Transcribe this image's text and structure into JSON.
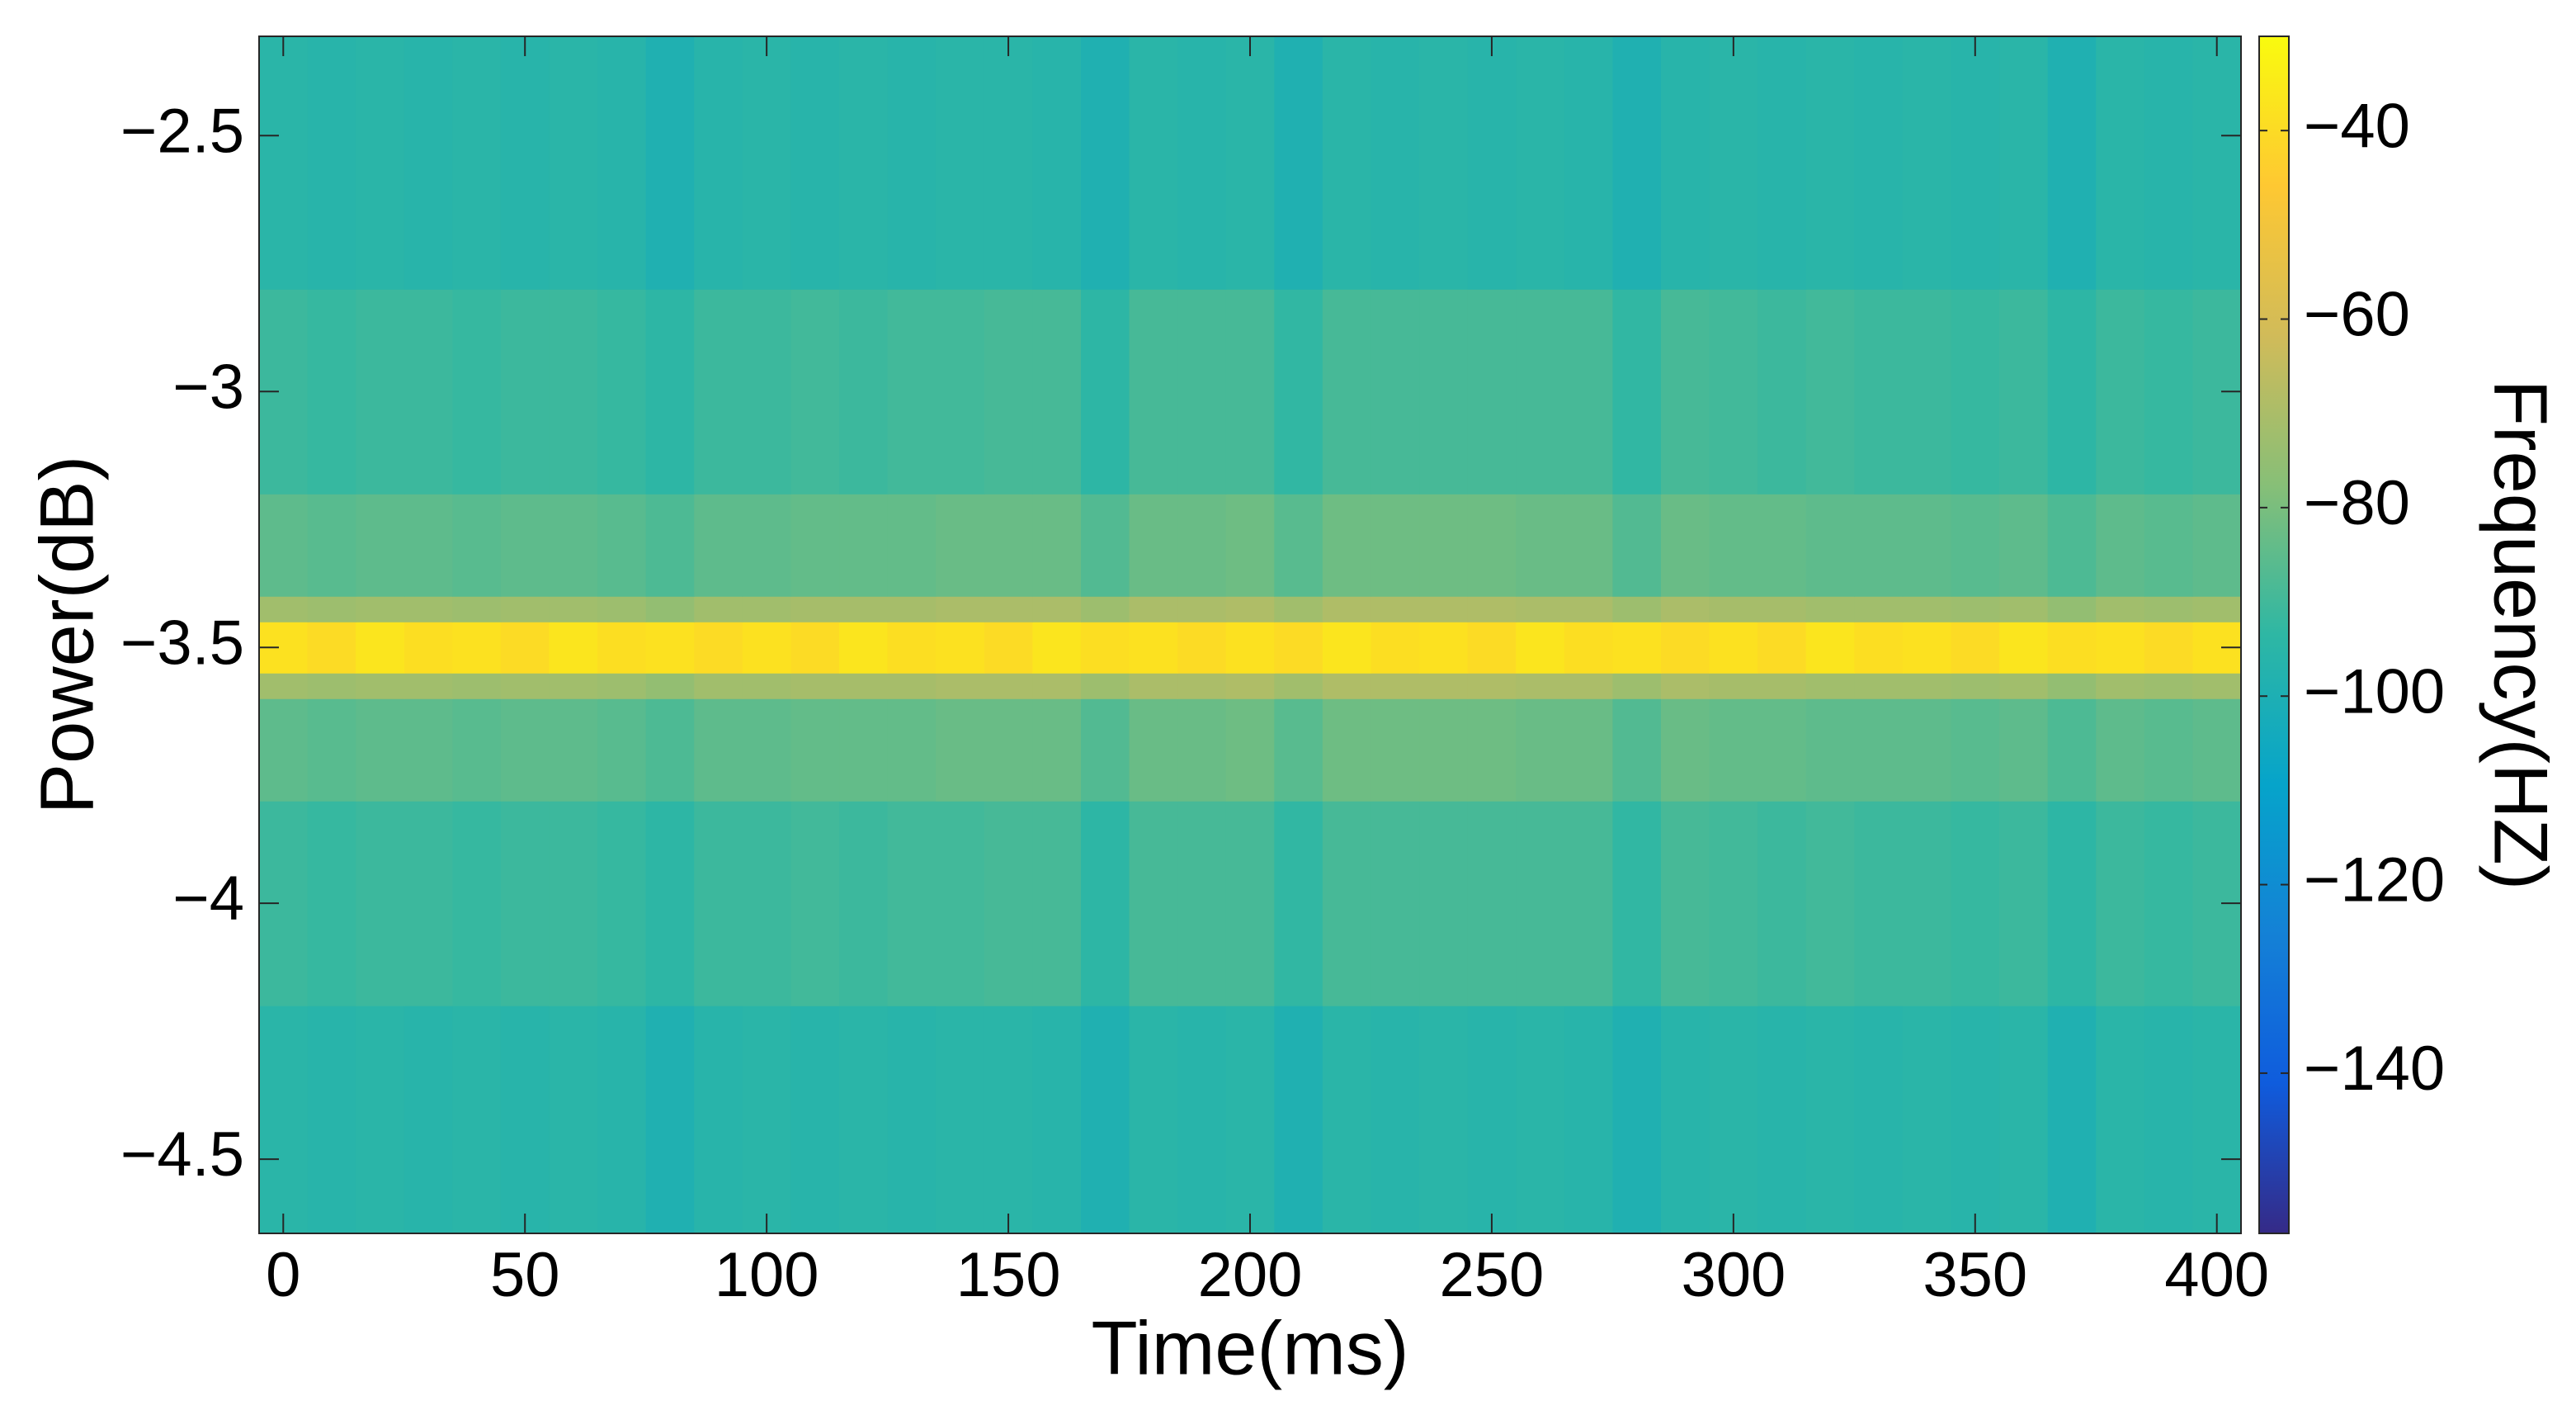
{
  "chart_data": {
    "type": "heatmap",
    "xlabel": "Time(ms)",
    "ylabel": "Power(dB)",
    "colorbar_label": "Frequency(HZ)",
    "xlim": [
      -5,
      405
    ],
    "xticks": [
      0,
      50,
      100,
      150,
      200,
      250,
      300,
      350,
      400
    ],
    "ylim": [
      -4.645,
      -2.306
    ],
    "yticks": [
      {
        "value": -4.5,
        "label": "−4.5"
      },
      {
        "value": -4,
        "label": "−4"
      },
      {
        "value": -3.5,
        "label": "−3.5"
      },
      {
        "value": -3,
        "label": "−3"
      },
      {
        "value": -2.5,
        "label": "−2.5"
      }
    ],
    "clim": [
      -157,
      -30
    ],
    "cticks": [
      {
        "value": -140,
        "label": "−140"
      },
      {
        "value": -120,
        "label": "−120"
      },
      {
        "value": -100,
        "label": "−100"
      },
      {
        "value": -80,
        "label": "−80"
      },
      {
        "value": -60,
        "label": "−60"
      },
      {
        "value": -40,
        "label": "−40"
      }
    ],
    "colormap": "parula",
    "x_bins": [
      -5,
      5,
      15,
      25,
      35,
      45,
      55,
      65,
      75,
      85,
      95,
      105,
      115,
      125,
      135,
      145,
      155,
      165,
      175,
      185,
      195,
      205,
      215,
      225,
      235,
      245,
      255,
      265,
      275,
      285,
      295,
      305,
      315,
      325,
      335,
      345,
      355,
      365,
      375,
      385,
      395,
      405
    ],
    "y_bins": [
      -4.645,
      -4.2,
      -3.8,
      -3.6,
      -3.55,
      -3.45,
      -3.4,
      -3.2,
      -2.8,
      -2.306
    ],
    "z": [
      [
        -95,
        -96,
        -95,
        -96,
        -95,
        -96,
        -95,
        -96,
        -99,
        -96,
        -95,
        -96,
        -95,
        -96,
        -95,
        -95,
        -96,
        -99,
        -95,
        -96,
        -95,
        -99,
        -95,
        -96,
        -95,
        -96,
        -95,
        -96,
        -99,
        -96,
        -95,
        -96,
        -95,
        -96,
        -95,
        -96,
        -95,
        -99,
        -95,
        -96,
        -95
      ],
      [
        -91,
        -92,
        -91,
        -91,
        -92,
        -91,
        -91,
        -92,
        -94,
        -91,
        -91,
        -90,
        -91,
        -90,
        -90,
        -89,
        -89,
        -94,
        -89,
        -89,
        -89,
        -93,
        -89,
        -89,
        -89,
        -89,
        -89,
        -89,
        -93,
        -89,
        -90,
        -91,
        -90,
        -91,
        -91,
        -92,
        -91,
        -94,
        -91,
        -92,
        -91
      ],
      [
        -85,
        -86,
        -85,
        -85,
        -86,
        -85,
        -85,
        -86,
        -88,
        -85,
        -85,
        -84,
        -84,
        -84,
        -83,
        -83,
        -83,
        -87,
        -83,
        -83,
        -82,
        -86,
        -82,
        -82,
        -82,
        -82,
        -83,
        -83,
        -87,
        -83,
        -84,
        -84,
        -85,
        -85,
        -85,
        -86,
        -85,
        -88,
        -85,
        -86,
        -85
      ],
      [
        -72,
        -73,
        -72,
        -72,
        -73,
        -72,
        -72,
        -73,
        -75,
        -72,
        -72,
        -71,
        -71,
        -71,
        -70,
        -70,
        -70,
        -73,
        -70,
        -70,
        -69,
        -72,
        -69,
        -69,
        -69,
        -69,
        -70,
        -70,
        -73,
        -70,
        -71,
        -71,
        -72,
        -72,
        -72,
        -73,
        -72,
        -75,
        -72,
        -73,
        -72
      ],
      [
        -38,
        -40,
        -37,
        -39,
        -38,
        -40,
        -37,
        -39,
        -38,
        -40,
        -38,
        -40,
        -37,
        -39,
        -38,
        -40,
        -37,
        -39,
        -38,
        -40,
        -38,
        -40,
        -37,
        -39,
        -38,
        -40,
        -37,
        -39,
        -38,
        -40,
        -38,
        -40,
        -37,
        -39,
        -38,
        -40,
        -37,
        -39,
        -38,
        -40,
        -38
      ],
      [
        -72,
        -73,
        -72,
        -72,
        -73,
        -72,
        -72,
        -73,
        -75,
        -72,
        -72,
        -71,
        -71,
        -71,
        -70,
        -70,
        -70,
        -73,
        -70,
        -70,
        -69,
        -72,
        -69,
        -69,
        -69,
        -69,
        -70,
        -70,
        -73,
        -70,
        -71,
        -71,
        -72,
        -72,
        -72,
        -73,
        -72,
        -75,
        -72,
        -73,
        -72
      ],
      [
        -85,
        -86,
        -85,
        -85,
        -86,
        -85,
        -85,
        -86,
        -88,
        -85,
        -85,
        -84,
        -84,
        -84,
        -83,
        -83,
        -83,
        -87,
        -83,
        -83,
        -82,
        -86,
        -82,
        -82,
        -82,
        -82,
        -83,
        -83,
        -87,
        -83,
        -84,
        -84,
        -85,
        -85,
        -85,
        -86,
        -85,
        -88,
        -85,
        -86,
        -85
      ],
      [
        -91,
        -92,
        -91,
        -91,
        -92,
        -91,
        -91,
        -92,
        -94,
        -91,
        -91,
        -90,
        -91,
        -90,
        -90,
        -89,
        -89,
        -94,
        -89,
        -89,
        -89,
        -93,
        -89,
        -89,
        -89,
        -89,
        -89,
        -89,
        -93,
        -89,
        -90,
        -91,
        -90,
        -91,
        -91,
        -92,
        -91,
        -94,
        -91,
        -92,
        -91
      ],
      [
        -95,
        -96,
        -95,
        -96,
        -95,
        -96,
        -95,
        -96,
        -99,
        -96,
        -95,
        -96,
        -95,
        -96,
        -95,
        -95,
        -96,
        -99,
        -95,
        -96,
        -95,
        -99,
        -95,
        -96,
        -95,
        -96,
        -95,
        -96,
        -99,
        -96,
        -95,
        -96,
        -95,
        -96,
        -95,
        -96,
        -95,
        -99,
        -95,
        -96,
        -95
      ]
    ]
  }
}
